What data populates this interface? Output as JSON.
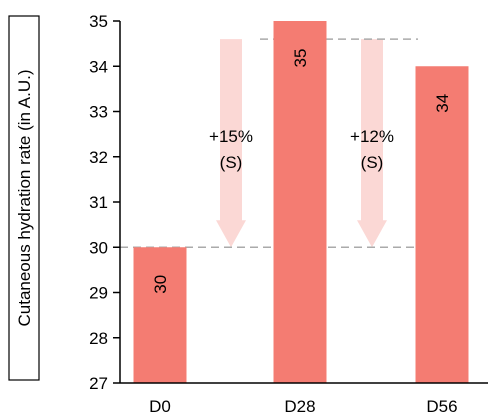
{
  "chart_data": {
    "type": "bar",
    "categories": [
      "D0",
      "D28",
      "D56"
    ],
    "values": [
      30,
      35,
      34
    ],
    "value_labels": [
      "30",
      "35",
      "34"
    ],
    "ylabel": "Cutaneous hydration rate (in A.U.)",
    "ylim": [
      27,
      35
    ],
    "yticks": [
      27,
      28,
      29,
      30,
      31,
      32,
      33,
      34,
      35
    ],
    "grid": false,
    "legend": "none",
    "reference_lines": [
      30,
      34.6
    ],
    "annotations": [
      {
        "line1": "+15%",
        "line2": "(S)",
        "between": [
          "D0",
          "D28"
        ]
      },
      {
        "line1": "+12%",
        "line2": "(S)",
        "between": [
          "D28",
          "D56"
        ]
      }
    ],
    "colors": {
      "bar": "#f47c72",
      "arrow": "#fbd8d5",
      "reference": "#aaaaaa",
      "axis": "#000000"
    }
  }
}
